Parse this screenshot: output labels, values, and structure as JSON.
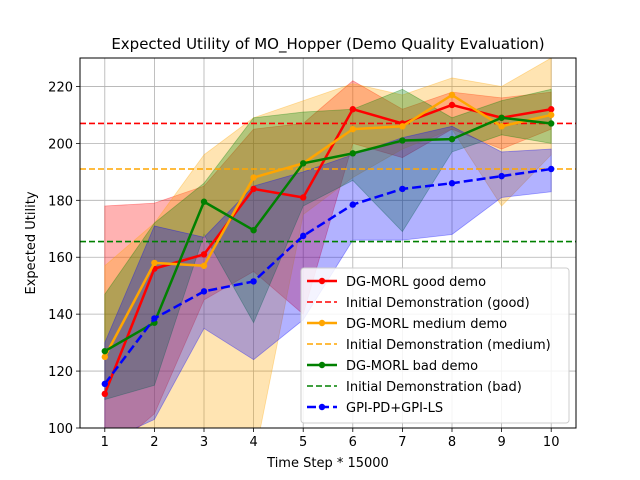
{
  "chart_data": {
    "type": "line",
    "title": "Expected Utility of MO_Hopper (Demo Quality Evaluation)",
    "xlabel": "Time Step * 15000",
    "ylabel": "Expected Utility",
    "x": [
      1,
      2,
      3,
      4,
      5,
      6,
      7,
      8,
      9,
      10
    ],
    "xlim": [
      0.5,
      10.5
    ],
    "ylim": [
      100,
      230
    ],
    "xticks": [
      1,
      2,
      3,
      4,
      5,
      6,
      7,
      8,
      9,
      10
    ],
    "yticks": [
      100,
      120,
      140,
      160,
      180,
      200,
      220
    ],
    "grid": true,
    "legend_position": "lower-right",
    "series": [
      {
        "name": "DG-MORL good demo",
        "color": "#ff0000",
        "style": "solid-marker",
        "values": [
          112,
          156,
          161,
          184,
          181,
          212,
          207,
          213.5,
          209,
          212
        ],
        "band_lower": [
          90,
          105,
          145,
          155,
          140,
          200,
          195,
          205,
          198,
          205
        ],
        "band_upper": [
          178,
          179,
          185,
          205,
          207,
          222,
          212,
          218,
          216,
          218
        ]
      },
      {
        "name": "Initial Demonstration (good)",
        "color": "#ff0000",
        "style": "hline",
        "value": 207
      },
      {
        "name": "DG-MORL medium demo",
        "color": "#ffa500",
        "style": "solid-marker",
        "values": [
          125,
          158,
          157,
          188,
          193,
          205,
          206,
          217,
          206,
          210
        ],
        "band_lower": [
          95,
          98,
          90,
          88,
          175,
          188,
          198,
          205,
          178,
          196
        ],
        "band_upper": [
          157,
          172,
          196,
          209,
          215,
          221,
          217,
          223,
          220,
          230
        ]
      },
      {
        "name": "Initial Demonstration (medium)",
        "color": "#ffa500",
        "style": "hline",
        "value": 191
      },
      {
        "name": "DG-MORL bad demo",
        "color": "#008000",
        "style": "solid-marker",
        "values": [
          127,
          137,
          179.5,
          169.5,
          193,
          196.5,
          201,
          201.5,
          209,
          207
        ],
        "band_lower": [
          110,
          115,
          168,
          137,
          178,
          187,
          169,
          197,
          203,
          200
        ],
        "band_upper": [
          147,
          172,
          186,
          209,
          211,
          212,
          219,
          209,
          215,
          219
        ]
      },
      {
        "name": "Initial Demonstration (bad)",
        "color": "#008000",
        "style": "hline",
        "value": 165.5
      },
      {
        "name": "GPI-PD+GPI-LS",
        "color": "#0000ff",
        "style": "dashed-marker",
        "values": [
          115.5,
          138.5,
          148,
          151.5,
          167.5,
          178.5,
          184,
          186,
          188.5,
          191
        ],
        "band_lower": [
          95,
          103,
          135,
          124,
          138,
          166,
          166,
          168,
          181,
          183
        ],
        "band_upper": [
          130,
          171,
          167,
          185,
          190,
          196,
          202,
          206,
          197,
          198
        ]
      }
    ]
  }
}
